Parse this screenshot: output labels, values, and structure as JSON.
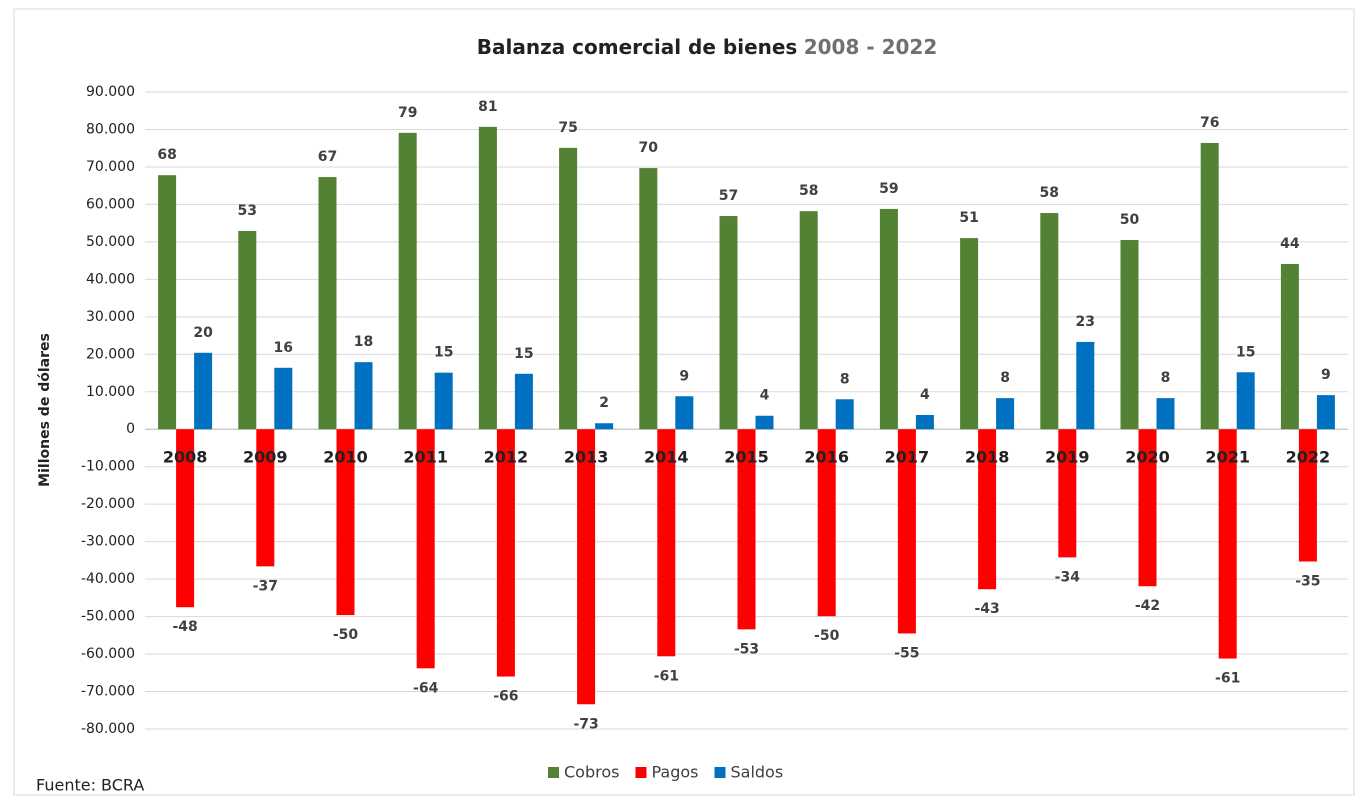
{
  "chart_data": {
    "type": "bar",
    "title": "Balanza comercial de bienes",
    "subtitle": "2008 - 2022",
    "y_label": "Millones de dólares",
    "source": "Fuente: BCRA",
    "categories": [
      "2008",
      "2009",
      "2010",
      "2011",
      "2012",
      "2013",
      "2014",
      "2015",
      "2016",
      "2017",
      "2018",
      "2019",
      "2020",
      "2021",
      "2022"
    ],
    "series": [
      {
        "name": "Cobros",
        "color": "#548235",
        "values": [
          67800,
          52900,
          67300,
          79100,
          80700,
          75100,
          69700,
          56900,
          58200,
          58800,
          51000,
          57700,
          50500,
          76400,
          44100
        ],
        "value_labels": [
          "68",
          "53",
          "67",
          "79",
          "81",
          "75",
          "70",
          "57",
          "58",
          "59",
          "51",
          "58",
          "50",
          "76",
          "44"
        ]
      },
      {
        "name": "Pagos",
        "color": "#ff0000",
        "values": [
          -47500,
          -36600,
          -49600,
          -63800,
          -66000,
          -73400,
          -60600,
          -53400,
          -49900,
          -54500,
          -42700,
          -34200,
          -41900,
          -61200,
          -35300
        ],
        "value_labels": [
          "-48",
          "-37",
          "-50",
          "-64",
          "-66",
          "-73",
          "-61",
          "-53",
          "-50",
          "-55",
          "-43",
          "-34",
          "-42",
          "-61",
          "-35"
        ]
      },
      {
        "name": "Saldos",
        "color": "#0070c0",
        "values": [
          20400,
          16400,
          17900,
          15100,
          14800,
          1600,
          8800,
          3600,
          8000,
          3800,
          8300,
          23300,
          8300,
          15200,
          9100
        ],
        "value_labels": [
          "20",
          "16",
          "18",
          "15",
          "15",
          "2",
          "9",
          "4",
          "8",
          "4",
          "8",
          "23",
          "8",
          "15",
          "9"
        ]
      }
    ],
    "ylim": [
      -80000,
      90000
    ],
    "yticks": [
      {
        "value": -80000,
        "label": "-80.000"
      },
      {
        "value": -70000,
        "label": "-70.000"
      },
      {
        "value": -60000,
        "label": "-60.000"
      },
      {
        "value": -50000,
        "label": "-50.000"
      },
      {
        "value": -40000,
        "label": "-40.000"
      },
      {
        "value": -30000,
        "label": "-30.000"
      },
      {
        "value": -20000,
        "label": "-20.000"
      },
      {
        "value": -10000,
        "label": "-10.000"
      },
      0,
      {
        "value": 10000,
        "label": "10.000"
      },
      {
        "value": 20000,
        "label": "20.000"
      },
      {
        "value": 30000,
        "label": "30.000"
      },
      {
        "value": 40000,
        "label": "40.000"
      },
      {
        "value": 50000,
        "label": "50.000"
      },
      {
        "value": 60000,
        "label": "60.000"
      },
      {
        "value": 70000,
        "label": "70.000"
      },
      {
        "value": 80000,
        "label": "80.000"
      },
      {
        "value": 90000,
        "label": "90.000"
      }
    ],
    "grid": true,
    "legend": "bottom"
  }
}
